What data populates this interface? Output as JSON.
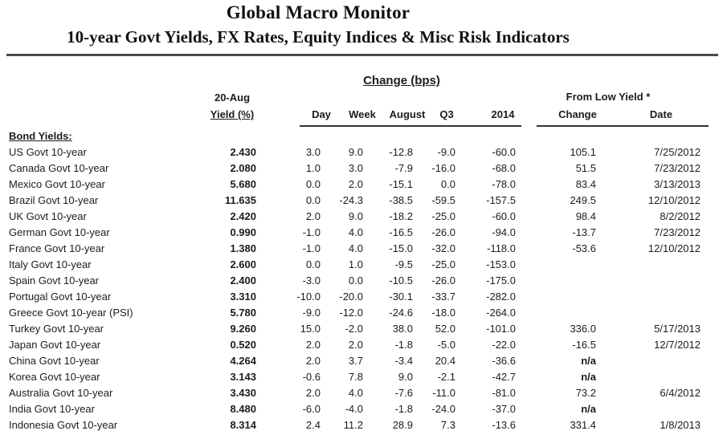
{
  "header": {
    "title": "Global Macro Monitor",
    "subtitle": "10-year Govt Yields, FX Rates, Equity Indices & Misc Risk Indicators"
  },
  "table": {
    "group_headers": {
      "change_bps": "Change (bps)",
      "asof_line1": "20-Aug",
      "asof_line2": "Yield (%)",
      "from_low_yield": "From Low Yield *"
    },
    "columns": [
      "Day",
      "Week",
      "August",
      "Q3",
      "2014",
      "Change",
      "Date"
    ],
    "section_label": "Bond Yields:",
    "rows": [
      {
        "label": "US Govt 10-year",
        "yield": "2.430",
        "day": "3.0",
        "week": "9.0",
        "august": "-12.8",
        "q3": "-9.0",
        "y2014": "-60.0",
        "change": "105.1",
        "date": "7/25/2012"
      },
      {
        "label": "Canada Govt 10-year",
        "yield": "2.080",
        "day": "1.0",
        "week": "3.0",
        "august": "-7.9",
        "q3": "-16.0",
        "y2014": "-68.0",
        "change": "51.5",
        "date": "7/23/2012"
      },
      {
        "label": "Mexico Govt 10-year",
        "yield": "5.680",
        "day": "0.0",
        "week": "2.0",
        "august": "-15.1",
        "q3": "0.0",
        "y2014": "-78.0",
        "change": "83.4",
        "date": "3/13/2013"
      },
      {
        "label": "Brazil Govt 10-year",
        "yield": "11.635",
        "day": "0.0",
        "week": "-24.3",
        "august": "-38.5",
        "q3": "-59.5",
        "y2014": "-157.5",
        "change": "249.5",
        "date": "12/10/2012"
      },
      {
        "label": "UK Govt 10-year",
        "yield": "2.420",
        "day": "2.0",
        "week": "9.0",
        "august": "-18.2",
        "q3": "-25.0",
        "y2014": "-60.0",
        "change": "98.4",
        "date": "8/2/2012"
      },
      {
        "label": "German Govt 10-year",
        "yield": "0.990",
        "day": "-1.0",
        "week": "4.0",
        "august": "-16.5",
        "q3": "-26.0",
        "y2014": "-94.0",
        "change": "-13.7",
        "date": "7/23/2012"
      },
      {
        "label": "France Govt 10-year",
        "yield": "1.380",
        "day": "-1.0",
        "week": "4.0",
        "august": "-15.0",
        "q3": "-32.0",
        "y2014": "-118.0",
        "change": "-53.6",
        "date": "12/10/2012"
      },
      {
        "label": "Italy Govt 10-year",
        "yield": "2.600",
        "day": "0.0",
        "week": "1.0",
        "august": "-9.5",
        "q3": "-25.0",
        "y2014": "-153.0",
        "change": "",
        "date": ""
      },
      {
        "label": "Spain Govt 10-year",
        "yield": "2.400",
        "day": "-3.0",
        "week": "0.0",
        "august": "-10.5",
        "q3": "-26.0",
        "y2014": "-175.0",
        "change": "",
        "date": ""
      },
      {
        "label": "Portugal Govt 10-year",
        "yield": "3.310",
        "day": "-10.0",
        "week": "-20.0",
        "august": "-30.1",
        "q3": "-33.7",
        "y2014": "-282.0",
        "change": "",
        "date": ""
      },
      {
        "label": "Greece Govt 10-year (PSI)",
        "yield": "5.780",
        "day": "-9.0",
        "week": "-12.0",
        "august": "-24.6",
        "q3": "-18.0",
        "y2014": "-264.0",
        "change": "",
        "date": ""
      },
      {
        "label": "Turkey Govt 10-year",
        "yield": "9.260",
        "day": "15.0",
        "week": "-2.0",
        "august": "38.0",
        "q3": "52.0",
        "y2014": "-101.0",
        "change": "336.0",
        "date": "5/17/2013"
      },
      {
        "label": "Japan Govt 10-year",
        "yield": "0.520",
        "day": "2.0",
        "week": "2.0",
        "august": "-1.8",
        "q3": "-5.0",
        "y2014": "-22.0",
        "change": "-16.5",
        "date": "12/7/2012"
      },
      {
        "label": "China Govt 10-year",
        "yield": "4.264",
        "day": "2.0",
        "week": "3.7",
        "august": "-3.4",
        "q3": "20.4",
        "y2014": "-36.6",
        "change": "n/a",
        "date": ""
      },
      {
        "label": "Korea Govt 10-year",
        "yield": "3.143",
        "day": "-0.6",
        "week": "7.8",
        "august": "9.0",
        "q3": "-2.1",
        "y2014": "-42.7",
        "change": "n/a",
        "date": ""
      },
      {
        "label": "Australia Govt 10-year",
        "yield": "3.430",
        "day": "2.0",
        "week": "4.0",
        "august": "-7.6",
        "q3": "-11.0",
        "y2014": "-81.0",
        "change": "73.2",
        "date": "6/4/2012"
      },
      {
        "label": "India Govt 10-year",
        "yield": "8.480",
        "day": "-6.0",
        "week": "-4.0",
        "august": "-1.8",
        "q3": "-24.0",
        "y2014": "-37.0",
        "change": "n/a",
        "date": ""
      },
      {
        "label": "Indonesia Govt 10-year",
        "yield": "8.314",
        "day": "2.4",
        "week": "11.2",
        "august": "28.9",
        "q3": "7.3",
        "y2014": "-13.6",
        "change": "331.4",
        "date": "1/8/2013"
      }
    ]
  }
}
